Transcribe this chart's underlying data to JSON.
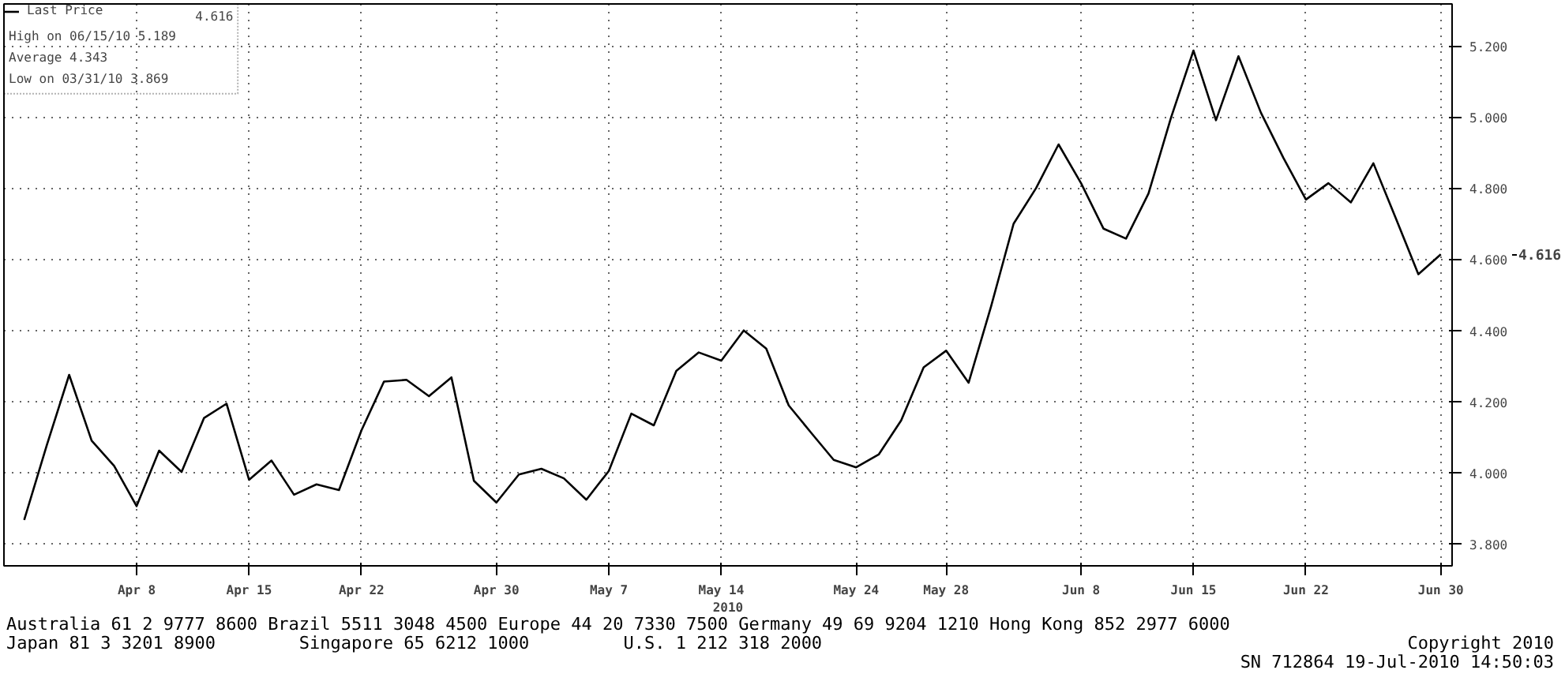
{
  "chart_data": {
    "type": "line",
    "xlabel": "2010",
    "categories": [
      null,
      null,
      null,
      null,
      null,
      "Apr 8",
      null,
      null,
      null,
      null,
      "Apr 15",
      null,
      null,
      null,
      null,
      "Apr 22",
      null,
      null,
      null,
      null,
      null,
      "Apr 30",
      null,
      null,
      null,
      null,
      "May 7",
      null,
      null,
      null,
      null,
      "May 14",
      null,
      null,
      null,
      null,
      null,
      "May 24",
      null,
      null,
      null,
      "May 28",
      null,
      null,
      null,
      null,
      null,
      "Jun 8",
      null,
      null,
      null,
      null,
      "Jun 15",
      null,
      null,
      null,
      null,
      "Jun 22",
      null,
      null,
      null,
      null,
      null,
      "Jun 30"
    ],
    "series": [
      {
        "name": "Last Price",
        "color": "#000000",
        "values": [
          3.869,
          4.078,
          4.277,
          4.092,
          4.021,
          3.908,
          4.064,
          4.004,
          4.156,
          4.196,
          3.982,
          4.036,
          3.94,
          3.969,
          3.953,
          4.121,
          4.258,
          4.263,
          4.217,
          4.27,
          3.979,
          3.918,
          3.997,
          4.013,
          3.986,
          3.926,
          4.007,
          4.168,
          4.135,
          4.288,
          4.34,
          4.317,
          4.402,
          4.351,
          4.191,
          4.114,
          4.038,
          4.017,
          4.053,
          4.149,
          4.298,
          4.345,
          4.255,
          4.47,
          4.702,
          4.802,
          4.925,
          4.816,
          4.688,
          4.66,
          4.787,
          5.0,
          5.189,
          4.993,
          5.173,
          5.014,
          4.887,
          4.77,
          4.816,
          4.762,
          4.872,
          4.717,
          4.56,
          4.616
        ]
      }
    ],
    "ylim": [
      3.74,
      5.32
    ],
    "yticks": [
      {
        "value": 3.8,
        "label": "3.800"
      },
      {
        "value": 4.0,
        "label": "4.000"
      },
      {
        "value": 4.2,
        "label": "4.200"
      },
      {
        "value": 4.4,
        "label": "4.400"
      },
      {
        "value": 4.6,
        "label": "4.600"
      },
      {
        "value": 4.8,
        "label": "4.800"
      },
      {
        "value": 5.0,
        "label": "5.000"
      },
      {
        "value": 5.2,
        "label": "5.200"
      }
    ],
    "grid": true,
    "legend": "top left",
    "marker": "none",
    "line_style": "solid",
    "annotations": [
      "4.616",
      "High on 06/15/10 5.189",
      "Average 4.343",
      "Low on 03/31/10 3.869",
      "Australia 61 2 9777 8600 Brazil 5511 3048 4500 Europe 44 20 7330 7500 Germany 49 69 9204 1210 Hong Kong 852 2977 6000",
      "Japan 81 3 3201 8900        Singapore 65 6212 1000         U.S. 1 212 318 2000",
      "Copyright 2010",
      "SN 712864 19-Jul-2010 14:50:03"
    ]
  }
}
